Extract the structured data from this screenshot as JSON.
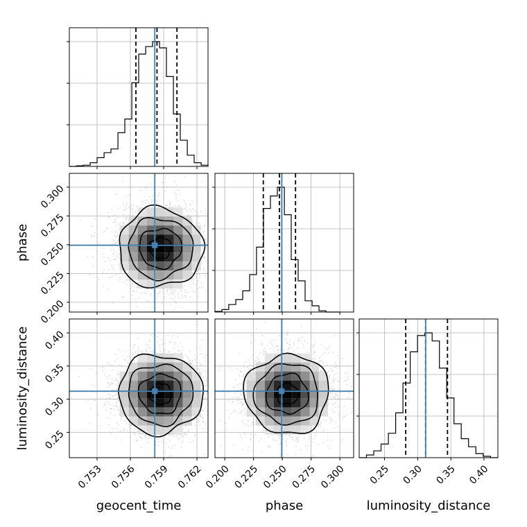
{
  "chart_data": {
    "type": "corner",
    "parameters": [
      "geocent_time",
      "phase",
      "luminosity_distance"
    ],
    "truths": {
      "geocent_time": 0.7582,
      "phase": 0.2495,
      "luminosity_distance": 0.312
    },
    "quantiles": {
      "geocent_time": [
        0.7565,
        0.7584,
        0.7602
      ],
      "phase": [
        0.2335,
        0.2475,
        0.2615
      ],
      "luminosity_distance": [
        0.282,
        0.312,
        0.345
      ]
    },
    "axes": {
      "geocent_time": {
        "range": [
          0.7505,
          0.763
        ],
        "ticks": [
          "0.753",
          "0.756",
          "0.759",
          "0.762"
        ]
      },
      "phase": {
        "range": [
          0.1915,
          0.312
        ],
        "ticks": [
          "0.200",
          "0.225",
          "0.250",
          "0.275",
          "0.300"
        ]
      },
      "luminosity_distance": {
        "range": [
          0.2118,
          0.421
        ],
        "ticks": [
          "0.25",
          "0.30",
          "0.35",
          "0.40"
        ]
      }
    },
    "histograms": {
      "geocent_time": {
        "edges": [
          0.7505,
          0.75113,
          0.75175,
          0.75238,
          0.753,
          0.75363,
          0.75425,
          0.75488,
          0.7555,
          0.75613,
          0.75675,
          0.75738,
          0.758,
          0.75863,
          0.75925,
          0.75988,
          0.7605,
          0.76113,
          0.76175,
          0.76238,
          0.763
        ],
        "counts": [
          0.0,
          0.005,
          0.01,
          0.03,
          0.07,
          0.11,
          0.14,
          0.27,
          0.38,
          0.67,
          0.9,
          0.96,
          1.0,
          0.95,
          0.72,
          0.42,
          0.21,
          0.09,
          0.03,
          0.01
        ]
      },
      "phase": {
        "edges": [
          0.1915,
          0.1975,
          0.2035,
          0.2096,
          0.2156,
          0.2216,
          0.2276,
          0.2337,
          0.2397,
          0.2457,
          0.2518,
          0.2578,
          0.2638,
          0.2698,
          0.2759,
          0.2819,
          0.2879,
          0.2939,
          0.3
        ],
        "counts": [
          0.005,
          0.02,
          0.06,
          0.1,
          0.17,
          0.3,
          0.52,
          0.83,
          0.93,
          1.0,
          0.78,
          0.42,
          0.25,
          0.09,
          0.05,
          0.01,
          0.0,
          0.0
        ]
      },
      "luminosity_distance": {
        "edges": [
          0.2118,
          0.2228,
          0.2338,
          0.2448,
          0.2558,
          0.2668,
          0.2778,
          0.2888,
          0.2998,
          0.3108,
          0.3218,
          0.3328,
          0.3438,
          0.3548,
          0.3658,
          0.3768,
          0.3878,
          0.3988,
          0.4098,
          0.421
        ],
        "counts": [
          0.0,
          0.02,
          0.05,
          0.1,
          0.18,
          0.33,
          0.55,
          0.78,
          0.9,
          0.92,
          0.86,
          0.66,
          0.44,
          0.25,
          0.14,
          0.08,
          0.03,
          0.01,
          0.0
        ]
      }
    },
    "contour_levels": [
      0.118,
      0.393,
      0.675,
      0.865
    ],
    "scatter_seed": 7
  }
}
